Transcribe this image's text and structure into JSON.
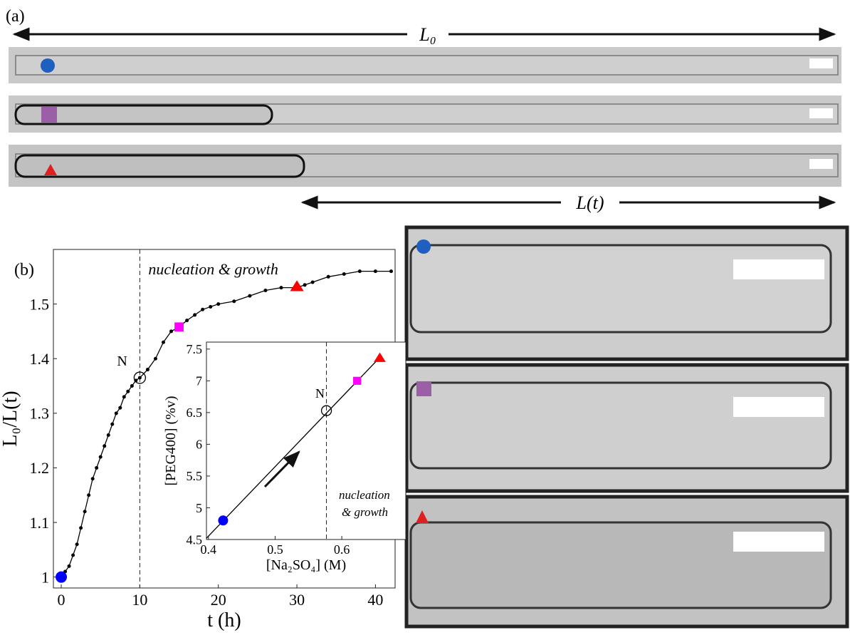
{
  "panels": {
    "a": "(a)",
    "b": "(b)"
  },
  "lengths": {
    "top": "L₀",
    "bottom": "L(t)"
  },
  "chart_data": [
    {
      "type": "line",
      "xlabel": "t (h)",
      "ylabel": "L₀/L(t)",
      "annotations": [
        "nucleation & growth",
        "N"
      ],
      "xlim": [
        -1,
        42.5
      ],
      "ylim": [
        0.98,
        1.6
      ],
      "xticks": [
        0,
        10,
        20,
        30,
        40
      ],
      "yticks": [
        1,
        1.1,
        1.2,
        1.3,
        1.4,
        1.5
      ],
      "dashed_x": 10,
      "series": [
        {
          "color": "#000000",
          "marker": "dot",
          "x": [
            0,
            0.5,
            1,
            1.5,
            2,
            2.5,
            3,
            3.5,
            4,
            4.5,
            5,
            5.5,
            6,
            6.5,
            7,
            7.5,
            8,
            8.5,
            9,
            9.5,
            10,
            11,
            12,
            13,
            14,
            15,
            16,
            17,
            18,
            19,
            20,
            22,
            24,
            26,
            28,
            30,
            31,
            32,
            34,
            36,
            38,
            40,
            42
          ],
          "values": [
            1,
            1.01,
            1.02,
            1.04,
            1.06,
            1.09,
            1.12,
            1.15,
            1.18,
            1.2,
            1.22,
            1.24,
            1.26,
            1.28,
            1.3,
            1.31,
            1.33,
            1.34,
            1.35,
            1.36,
            1.365,
            1.38,
            1.4,
            1.43,
            1.45,
            1.458,
            1.47,
            1.48,
            1.49,
            1.495,
            1.5,
            1.505,
            1.515,
            1.525,
            1.53,
            1.53,
            1.535,
            1.54,
            1.55,
            1.555,
            1.56,
            1.56,
            1.56
          ]
        },
        {
          "color": "#0000ff",
          "marker": "circle",
          "x": [
            0
          ],
          "values": [
            1
          ]
        },
        {
          "color": "#000000",
          "marker": "open",
          "x": [
            10
          ],
          "values": [
            1.365
          ]
        },
        {
          "color": "#ff00ff",
          "marker": "square",
          "x": [
            15
          ],
          "values": [
            1.458
          ]
        },
        {
          "color": "#ff0000",
          "marker": "triangle",
          "x": [
            30
          ],
          "values": [
            1.532
          ]
        }
      ]
    },
    {
      "type": "line",
      "xlabel": "[Na₂SO₄] (M)",
      "ylabel": "[PEG400] (%v)",
      "annotations": [
        "nucleation",
        "& growth",
        "N"
      ],
      "xlim": [
        0.397,
        0.696
      ],
      "ylim": [
        4.5,
        7.61
      ],
      "xticks": [
        0.4,
        0.5,
        0.6
      ],
      "yticks": [
        4.5,
        5,
        5.5,
        6,
        6.5,
        7,
        7.5
      ],
      "dashed_x": 0.577,
      "series": [
        {
          "color": "#000000",
          "marker": "none",
          "x": [
            0.397,
            0.66
          ],
          "values": [
            4.52,
            7.4
          ]
        },
        {
          "color": "#0000ff",
          "marker": "circle",
          "x": [
            0.422
          ],
          "values": [
            4.8
          ]
        },
        {
          "color": "#000000",
          "marker": "open",
          "x": [
            0.577
          ],
          "values": [
            6.53
          ]
        },
        {
          "color": "#ff00ff",
          "marker": "square",
          "x": [
            0.623
          ],
          "values": [
            7.0
          ]
        },
        {
          "color": "#ff0000",
          "marker": "triangle",
          "x": [
            0.657
          ],
          "values": [
            7.36
          ]
        }
      ]
    }
  ]
}
